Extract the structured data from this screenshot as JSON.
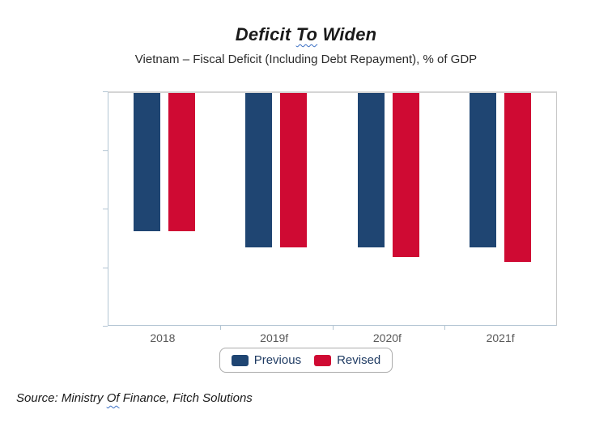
{
  "title": {
    "part1": "Deficit",
    "part2_wavy": "To",
    "part3": "Widen"
  },
  "subtitle": "Vietnam – Fiscal Deficit (Including Debt Repayment), % of GDP",
  "source": {
    "part1": "Source: Ministry",
    "part2_wavy": "Of",
    "part3": "Finance, Fitch Solutions"
  },
  "colors": {
    "previous_bar": "#1f4572",
    "revised_bar": "#cf0a33",
    "legend_text": "#1f3b63",
    "axis_label": "#595959",
    "axis_line": "#b3c5d3",
    "frame_line": "#c9c9c9",
    "squiggle": "#3a6fc4"
  },
  "chart_data": {
    "type": "bar",
    "title": "Deficit To Widen",
    "subtitle": "Vietnam – Fiscal Deficit (Including Debt Repayment), % of GDP",
    "categories": [
      "2018",
      "2019f",
      "2020f",
      "2021f"
    ],
    "series": [
      {
        "name": "Previous",
        "color": "#1f4572",
        "values": [
          -5.9,
          -6.6,
          -6.6,
          -6.6
        ]
      },
      {
        "name": "Revised",
        "color": "#cf0a33",
        "values": [
          -5.9,
          -6.6,
          -7.0,
          -7.2
        ]
      }
    ],
    "ylabel": "% of GDP",
    "ylim": [
      -10,
      0
    ],
    "yticks": [
      0,
      -2.5,
      -5,
      -7.5,
      -10
    ],
    "grid": false,
    "legend_position": "bottom",
    "bars_hang_from_zero": true
  }
}
